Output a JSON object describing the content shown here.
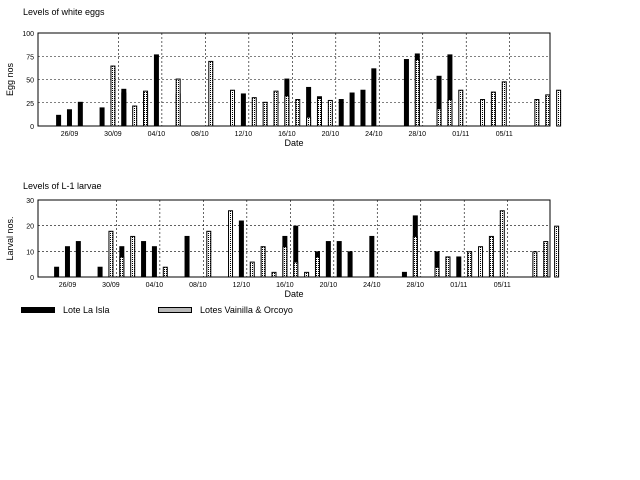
{
  "chart_data": [
    {
      "type": "bar",
      "title": "Levels of white eggs",
      "xlabel": "Date",
      "ylabel": "Egg nos",
      "ylim": [
        0,
        100
      ],
      "yticks": [
        0,
        25,
        50,
        75,
        100
      ],
      "xtick_labels": [
        "26/09",
        "30/09",
        "04/10",
        "08/10",
        "12/10",
        "16/10",
        "20/10",
        "24/10",
        "28/10",
        "01/11",
        "05/11"
      ],
      "grid": true,
      "series": [
        {
          "name": "Lote La Isla",
          "style": "solid",
          "points": [
            {
              "x": "25/09",
              "y": 12
            },
            {
              "x": "26/09",
              "y": 18
            },
            {
              "x": "27/09",
              "y": 26
            },
            {
              "x": "29/09",
              "y": 20
            },
            {
              "x": "01/10",
              "y": 36
            },
            {
              "x": "01/10",
              "y": 40
            },
            {
              "x": "03/10",
              "y": 34
            },
            {
              "x": "04/10",
              "y": 77
            },
            {
              "x": "06/10",
              "y": 35
            },
            {
              "x": "12/10",
              "y": 35
            },
            {
              "x": "16/10",
              "y": 51
            },
            {
              "x": "18/10",
              "y": 42
            },
            {
              "x": "19/10",
              "y": 32
            },
            {
              "x": "21/10",
              "y": 29
            },
            {
              "x": "22/10",
              "y": 36
            },
            {
              "x": "23/10",
              "y": 39
            },
            {
              "x": "24/10",
              "y": 62
            },
            {
              "x": "27/10",
              "y": 72
            },
            {
              "x": "28/10",
              "y": 78
            },
            {
              "x": "30/10",
              "y": 54
            },
            {
              "x": "31/10",
              "y": 77
            }
          ]
        },
        {
          "name": "Lotes Vainilla & Orcoyo",
          "style": "dotted",
          "points": [
            {
              "x": "30/09",
              "y": 65
            },
            {
              "x": "02/10",
              "y": 22
            },
            {
              "x": "03/10",
              "y": 38
            },
            {
              "x": "06/10",
              "y": 51
            },
            {
              "x": "09/10",
              "y": 70
            },
            {
              "x": "11/10",
              "y": 39
            },
            {
              "x": "13/10",
              "y": 31
            },
            {
              "x": "14/10",
              "y": 26
            },
            {
              "x": "15/10",
              "y": 38
            },
            {
              "x": "16/10",
              "y": 33
            },
            {
              "x": "17/10",
              "y": 29
            },
            {
              "x": "18/10",
              "y": 10
            },
            {
              "x": "19/10",
              "y": 30
            },
            {
              "x": "20/10",
              "y": 28
            },
            {
              "x": "28/10",
              "y": 72
            },
            {
              "x": "30/10",
              "y": 19
            },
            {
              "x": "31/10",
              "y": 29
            },
            {
              "x": "01/11",
              "y": 39
            },
            {
              "x": "03/11",
              "y": 29
            },
            {
              "x": "04/11",
              "y": 37
            },
            {
              "x": "05/11",
              "y": 48
            },
            {
              "x": "08/11",
              "y": 29
            },
            {
              "x": "09/11",
              "y": 34
            },
            {
              "x": "10/11",
              "y": 39
            }
          ]
        }
      ]
    },
    {
      "type": "bar",
      "title": "Levels of L-1 larvae",
      "xlabel": "Date",
      "ylabel": "Larval nos.",
      "ylim": [
        0,
        30
      ],
      "yticks": [
        0,
        10,
        20,
        30
      ],
      "xtick_labels": [
        "26/09",
        "30/09",
        "04/10",
        "08/10",
        "12/10",
        "16/10",
        "20/10",
        "24/10",
        "28/10",
        "01/11",
        "05/11"
      ],
      "grid": true,
      "series": [
        {
          "name": "Lote La Isla",
          "style": "solid",
          "points": [
            {
              "x": "25/09",
              "y": 4
            },
            {
              "x": "26/09",
              "y": 12
            },
            {
              "x": "27/09",
              "y": 14
            },
            {
              "x": "29/09",
              "y": 4
            },
            {
              "x": "30/09",
              "y": 8
            },
            {
              "x": "01/10",
              "y": 12
            },
            {
              "x": "03/10",
              "y": 14
            },
            {
              "x": "04/10",
              "y": 12
            },
            {
              "x": "07/10",
              "y": 16
            },
            {
              "x": "12/10",
              "y": 22
            },
            {
              "x": "16/10",
              "y": 16
            },
            {
              "x": "17/10",
              "y": 20
            },
            {
              "x": "19/10",
              "y": 10
            },
            {
              "x": "20/10",
              "y": 14
            },
            {
              "x": "21/10",
              "y": 14
            },
            {
              "x": "22/10",
              "y": 10
            },
            {
              "x": "24/10",
              "y": 16
            },
            {
              "x": "27/10",
              "y": 2
            },
            {
              "x": "28/10",
              "y": 24
            },
            {
              "x": "30/10",
              "y": 10
            },
            {
              "x": "31/10",
              "y": 8
            },
            {
              "x": "01/11",
              "y": 8
            }
          ]
        },
        {
          "name": "Lotes Vainilla & Orcoyo",
          "style": "dotted",
          "points": [
            {
              "x": "30/09",
              "y": 18
            },
            {
              "x": "01/10",
              "y": 8
            },
            {
              "x": "02/10",
              "y": 16
            },
            {
              "x": "05/10",
              "y": 4
            },
            {
              "x": "09/10",
              "y": 18
            },
            {
              "x": "11/10",
              "y": 26
            },
            {
              "x": "13/10",
              "y": 6
            },
            {
              "x": "14/10",
              "y": 12
            },
            {
              "x": "15/10",
              "y": 2
            },
            {
              "x": "16/10",
              "y": 12
            },
            {
              "x": "17/10",
              "y": 6
            },
            {
              "x": "18/10",
              "y": 2
            },
            {
              "x": "19/10",
              "y": 8
            },
            {
              "x": "28/10",
              "y": 16
            },
            {
              "x": "30/10",
              "y": 4
            },
            {
              "x": "31/10",
              "y": 8
            },
            {
              "x": "02/11",
              "y": 10
            },
            {
              "x": "03/11",
              "y": 12
            },
            {
              "x": "04/11",
              "y": 16
            },
            {
              "x": "05/11",
              "y": 26
            },
            {
              "x": "08/11",
              "y": 10
            },
            {
              "x": "09/11",
              "y": 14
            },
            {
              "x": "10/11",
              "y": 20
            }
          ]
        }
      ]
    }
  ],
  "legend": {
    "items": [
      {
        "label": "Lote La Isla",
        "style": "solid"
      },
      {
        "label": "Lotes Vainilla & Orcoyo",
        "style": "dotted"
      }
    ]
  }
}
